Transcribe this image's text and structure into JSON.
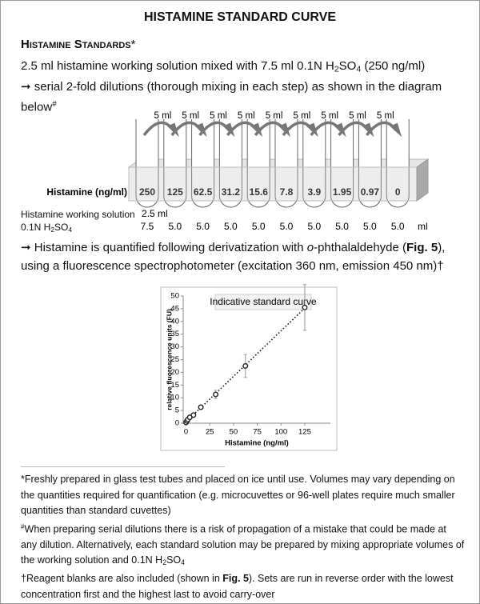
{
  "title": "HISTAMINE STANDARD CURVE",
  "heading": "Histamine Standards",
  "heading_mark": "*",
  "intro": [
    [
      {
        "t": "2.5 ml histamine working solution mixed with 7.5 ml 0.1N H"
      },
      {
        "t": "2",
        "s": "sub"
      },
      {
        "t": "SO"
      },
      {
        "t": "4",
        "s": "sub"
      },
      {
        "t": " (250 ng/ml)"
      }
    ],
    [
      {
        "t": "➞ serial 2-fold dilutions (thorough mixing in each step) as shown in the diagram below"
      },
      {
        "t": "#",
        "s": "sup"
      }
    ]
  ],
  "diagram": {
    "transfer_labels": [
      "5 ml",
      "5 ml",
      "5 ml",
      "5 ml",
      "5 ml",
      "5 ml",
      "5 ml",
      "5 ml",
      "5 ml"
    ],
    "row_label": "Histamine (ng/ml)",
    "concentrations": [
      "250",
      "125",
      "62.5",
      "31.2",
      "15.6",
      "7.8",
      "3.9",
      "1.95",
      "0.97",
      "0"
    ],
    "rows": [
      {
        "label": [
          {
            "t": "Histamine working solution"
          }
        ],
        "values": [
          "2.5 ml"
        ]
      },
      {
        "label": [
          {
            "t": "0.1N H"
          },
          {
            "t": "2",
            "s": "sub"
          },
          {
            "t": "SO"
          },
          {
            "t": "4",
            "s": "sub"
          }
        ],
        "values": [
          "7.5",
          "5.0",
          "5.0",
          "5.0",
          "5.0",
          "5.0",
          "5.0",
          "5.0",
          "5.0",
          "5.0"
        ],
        "unit": "ml"
      }
    ]
  },
  "detection": [
    {
      "t": "➞ Histamine is quantified following derivatization with "
    },
    {
      "t": "o",
      "s": "i"
    },
    {
      "t": "-phthalaldehyde ("
    },
    {
      "t": "Fig. 5",
      "s": "b"
    },
    {
      "t": "), using a fluorescence spectrophotometer (excitation 360 nm, emission 450 nm)†"
    }
  ],
  "chart_data": {
    "type": "scatter",
    "title": "Indicative standard curve",
    "x_label": "Histamine (ng/ml)",
    "y_label": "relative fluorescence units (FU)",
    "x": [
      0,
      0.97,
      1.95,
      3.9,
      7.8,
      15.6,
      31.2,
      62.5,
      125
    ],
    "values": [
      0.3,
      0.9,
      1.5,
      2.3,
      3.2,
      6.3,
      11.3,
      22.5,
      45.5
    ],
    "errors": [
      0.3,
      0.3,
      0.3,
      0.4,
      0.5,
      0.8,
      1.6,
      4.5,
      9
    ],
    "color": "#222",
    "trendline": "linear",
    "xlim": [
      -3,
      152
    ],
    "ylim": [
      0,
      50
    ],
    "xticks": [
      0,
      25,
      50,
      75,
      100,
      125
    ],
    "yticks": [
      0,
      5,
      10,
      15,
      20,
      25,
      30,
      35,
      40,
      45,
      50
    ]
  },
  "footnotes": [
    [
      {
        "t": "*Freshly prepared in glass test tubes and placed on ice until use. Volumes may vary depending on the quantities required for quantification (e.g. microcuvettes or 96-well plates require much smaller quantities than standard cuvettes)"
      }
    ],
    [
      {
        "t": "#",
        "s": "sup"
      },
      {
        "t": "When preparing serial dilutions there is a risk of propagation of a mistake that could be made at any dilution. Alternatively, each standard  solution may be prepared by mixing appropriate volumes of the working solution and 0.1N H"
      },
      {
        "t": "2",
        "s": "sub"
      },
      {
        "t": "SO"
      },
      {
        "t": "4",
        "s": "sub"
      }
    ],
    [
      {
        "t": "†Reagent blanks are also included (shown in "
      },
      {
        "t": "Fig. 5",
        "s": "b"
      },
      {
        "t": "). Sets are run in reverse order with the lowest concentration first and the highest last to avoid carry-over"
      }
    ]
  ]
}
